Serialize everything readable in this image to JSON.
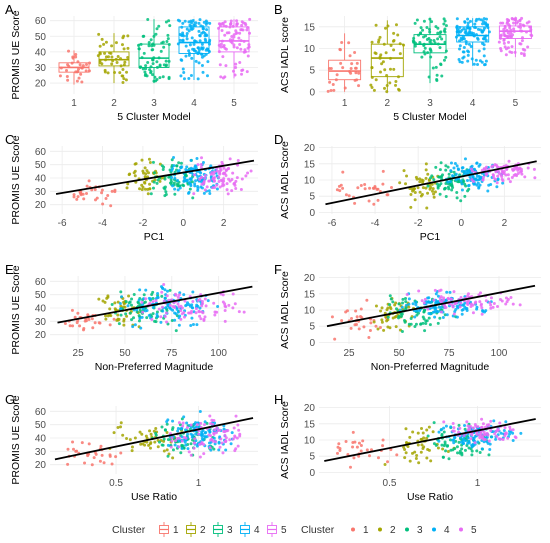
{
  "figure": {
    "legend_left": {
      "title": "Cluster",
      "items": [
        "1",
        "2",
        "3",
        "4",
        "5"
      ],
      "glyph": "box"
    },
    "legend_right": {
      "title": "Cluster",
      "items": [
        "1",
        "2",
        "3",
        "4",
        "5"
      ],
      "glyph": "point"
    }
  },
  "colors": {
    "cluster": [
      "#F8766D",
      "#A3A500",
      "#00BF7D",
      "#00B0F6",
      "#E76BF3"
    ],
    "fit_line": "#000000",
    "grid": "#EBEBEB"
  },
  "chart_data": [
    {
      "panel": "A",
      "type": "box",
      "xlabel": "5 Cluster Model",
      "ylabel": "PROMIS UE Score",
      "categories": [
        "1",
        "2",
        "3",
        "4",
        "5"
      ],
      "xlim": [
        0.4,
        5.6
      ],
      "ylim": [
        13,
        63
      ],
      "yticks": [
        20,
        30,
        40,
        50,
        60
      ],
      "stats": [
        {
          "q1": 27,
          "median": 30,
          "q3": 33,
          "whisker_low": 19,
          "whisker_high": 41
        },
        {
          "q1": 31,
          "median": 35,
          "q3": 40,
          "whisker_low": 20,
          "whisker_high": 52
        },
        {
          "q1": 30,
          "median": 36,
          "q3": 45,
          "whisker_low": 20,
          "whisker_high": 61
        },
        {
          "q1": 39,
          "median": 46,
          "q3": 56,
          "whisker_low": 22,
          "whisker_high": 61
        },
        {
          "q1": 40,
          "median": 47,
          "q3": 56,
          "whisker_low": 23,
          "whisker_high": 61
        }
      ],
      "jitter_n": [
        30,
        48,
        70,
        110,
        85
      ]
    },
    {
      "panel": "B",
      "type": "box",
      "xlabel": "5 Cluster Model",
      "ylabel": "ACS IADL score",
      "categories": [
        "1",
        "2",
        "3",
        "4",
        "5"
      ],
      "xlim": [
        0.4,
        5.6
      ],
      "ylim": [
        -0.5,
        17.5
      ],
      "yticks": [
        0,
        5,
        10,
        15
      ],
      "stats": [
        {
          "q1": 2.8,
          "median": 4.8,
          "q3": 7.3,
          "whisker_low": 0,
          "whisker_high": 13.5
        },
        {
          "q1": 3.5,
          "median": 7.8,
          "q3": 11.0,
          "whisker_low": 0,
          "whisker_high": 16.5
        },
        {
          "q1": 9.0,
          "median": 11.0,
          "q3": 13.2,
          "whisker_low": 2,
          "whisker_high": 17
        },
        {
          "q1": 11.5,
          "median": 13.0,
          "q3": 15.0,
          "whisker_low": 6,
          "whisker_high": 17
        },
        {
          "q1": 12.3,
          "median": 14.0,
          "q3": 15.2,
          "whisker_low": 8,
          "whisker_high": 17
        }
      ],
      "jitter_n": [
        30,
        48,
        70,
        110,
        85
      ]
    },
    {
      "panel": "C",
      "type": "scatter",
      "xlabel": "PC1",
      "ylabel": "PROMIS UE Score",
      "xlim": [
        -6.6,
        3.7
      ],
      "ylim": [
        13,
        64
      ],
      "xticks": [
        -6,
        -4,
        -2,
        0,
        2
      ],
      "yticks": [
        20,
        30,
        40,
        50,
        60
      ],
      "fit_line": [
        [
          -6.3,
          28
        ],
        [
          3.5,
          53
        ]
      ],
      "cluster_x_ranges": [
        [
          -6.3,
          -3.0
        ],
        [
          -3.0,
          -0.8
        ],
        [
          -1.8,
          0.8
        ],
        [
          -0.8,
          2.0
        ],
        [
          0.3,
          3.5
        ]
      ],
      "cluster_y_ranges": [
        [
          17,
          41
        ],
        [
          20,
          58
        ],
        [
          20,
          61
        ],
        [
          22,
          61
        ],
        [
          22,
          61
        ]
      ],
      "cluster_n": [
        30,
        48,
        70,
        110,
        85
      ]
    },
    {
      "panel": "D",
      "type": "scatter",
      "xlabel": "PC1",
      "ylabel": "ACS IADL Score",
      "xlim": [
        -6.6,
        3.7
      ],
      "ylim": [
        -0.5,
        20.5
      ],
      "xticks": [
        -6,
        -4,
        -2,
        0,
        2
      ],
      "yticks": [
        0,
        5,
        10,
        15,
        20
      ],
      "fit_line": [
        [
          -6.3,
          2.5
        ],
        [
          3.5,
          15.8
        ]
      ],
      "cluster_x_ranges": [
        [
          -6.3,
          -3.0
        ],
        [
          -3.0,
          -0.8
        ],
        [
          -1.8,
          0.8
        ],
        [
          -0.8,
          2.0
        ],
        [
          0.3,
          3.5
        ]
      ],
      "cluster_y_ranges": [
        [
          0,
          13.5
        ],
        [
          0,
          16.5
        ],
        [
          2,
          17
        ],
        [
          6,
          17
        ],
        [
          8,
          17
        ]
      ],
      "cluster_n": [
        30,
        48,
        70,
        110,
        85
      ]
    },
    {
      "panel": "E",
      "type": "scatter",
      "xlabel": "Non-Preferred Magnitude",
      "ylabel": "PROMIS UE Score",
      "xlim": [
        10,
        121
      ],
      "ylim": [
        13,
        64
      ],
      "xticks": [
        25,
        50,
        75,
        100
      ],
      "yticks": [
        20,
        30,
        40,
        50,
        60
      ],
      "fit_line": [
        [
          14,
          29
        ],
        [
          118,
          56
        ]
      ],
      "cluster_x_ranges": [
        [
          14,
          45
        ],
        [
          35,
          60
        ],
        [
          40,
          80
        ],
        [
          45,
          100
        ],
        [
          50,
          118
        ]
      ],
      "cluster_y_ranges": [
        [
          17,
          41
        ],
        [
          20,
          58
        ],
        [
          20,
          61
        ],
        [
          22,
          61
        ],
        [
          22,
          61
        ]
      ],
      "cluster_n": [
        30,
        48,
        70,
        110,
        85
      ]
    },
    {
      "panel": "F",
      "type": "scatter",
      "xlabel": "Non-Preferred Magnitude",
      "ylabel": "ACS IADL Score",
      "xlim": [
        10,
        121
      ],
      "ylim": [
        -0.5,
        20.5
      ],
      "xticks": [
        25,
        50,
        75,
        100
      ],
      "yticks": [
        0,
        5,
        10,
        15,
        20
      ],
      "fit_line": [
        [
          14,
          5
        ],
        [
          118,
          17.5
        ]
      ],
      "cluster_x_ranges": [
        [
          14,
          45
        ],
        [
          35,
          60
        ],
        [
          40,
          80
        ],
        [
          45,
          100
        ],
        [
          50,
          118
        ]
      ],
      "cluster_y_ranges": [
        [
          0,
          13.5
        ],
        [
          0,
          16.5
        ],
        [
          2,
          17
        ],
        [
          6,
          17
        ],
        [
          8,
          17
        ]
      ],
      "cluster_n": [
        30,
        48,
        70,
        110,
        85
      ]
    },
    {
      "panel": "G",
      "type": "scatter",
      "xlabel": "Use Ratio",
      "ylabel": "PROMIS UE Score",
      "xlim": [
        0.1,
        1.36
      ],
      "ylim": [
        13,
        64
      ],
      "xticks": [
        0.5,
        1.0
      ],
      "yticks": [
        20,
        30,
        40,
        50,
        60
      ],
      "fit_line": [
        [
          0.13,
          24
        ],
        [
          1.33,
          55
        ]
      ],
      "cluster_x_ranges": [
        [
          0.13,
          0.55
        ],
        [
          0.45,
          0.95
        ],
        [
          0.7,
          1.1
        ],
        [
          0.75,
          1.25
        ],
        [
          0.8,
          1.3
        ]
      ],
      "cluster_y_ranges": [
        [
          17,
          41
        ],
        [
          20,
          58
        ],
        [
          20,
          61
        ],
        [
          22,
          61
        ],
        [
          22,
          61
        ]
      ],
      "cluster_n": [
        30,
        48,
        70,
        110,
        85
      ]
    },
    {
      "panel": "H",
      "type": "scatter",
      "xlabel": "Use Ratio",
      "ylabel": "ACS IADL Score",
      "xlim": [
        0.1,
        1.36
      ],
      "ylim": [
        -0.5,
        20.5
      ],
      "xticks": [
        0.5,
        1.0
      ],
      "yticks": [
        0,
        5,
        10,
        15,
        20
      ],
      "fit_line": [
        [
          0.13,
          3.5
        ],
        [
          1.33,
          16.5
        ]
      ],
      "cluster_x_ranges": [
        [
          0.13,
          0.55
        ],
        [
          0.45,
          0.95
        ],
        [
          0.7,
          1.1
        ],
        [
          0.75,
          1.25
        ],
        [
          0.8,
          1.3
        ]
      ],
      "cluster_y_ranges": [
        [
          0,
          13.5
        ],
        [
          0,
          16.5
        ],
        [
          2,
          17
        ],
        [
          6,
          17
        ],
        [
          8,
          17
        ]
      ],
      "cluster_n": [
        30,
        48,
        70,
        110,
        85
      ]
    }
  ]
}
